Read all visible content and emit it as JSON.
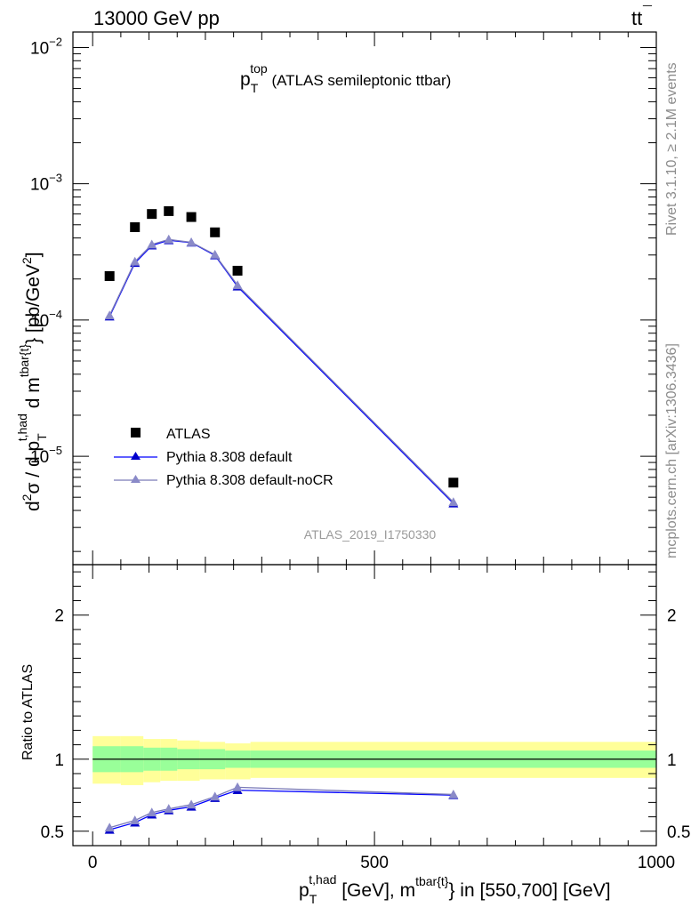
{
  "header": {
    "energy_label": "13000 GeV pp",
    "process_main": "tt",
    "process_bar": "¯"
  },
  "side_labels": {
    "rivet": "Rivet 3.1.10, ≥ 2.1M events",
    "mcplots": "mcplots.cern.ch [arXiv:1306.3436]"
  },
  "colors": {
    "data": "#000000",
    "default": "#0000ff",
    "default_marker": "#0000cc",
    "nocr": "#7a7ab8",
    "nocr_marker": "#8a8ac8",
    "band_inner": "#99ff99",
    "band_outer": "#ffff99"
  },
  "chart_data": [
    {
      "type": "scatter",
      "title": {
        "p": "p",
        "sub": "T",
        "sup": "top",
        "rest": " (ATLAS semileptonic ttbar)"
      },
      "ylabel": {
        "d2": "d",
        "d2_sup": "2",
        "sigma": "σ / d p",
        "p_sub": "T",
        "p_sup": "t,had",
        "dm": " d m",
        "m_sup": "tbar{t}",
        "unit": "} [pb/GeV",
        "unit_sup": "2",
        "close": "]"
      },
      "yscale": "log",
      "ylim": [
        1.6e-06,
        0.013
      ],
      "xlim": [
        -35,
        1000
      ],
      "y_ticks": [
        {
          "value": 0.01,
          "base": "10",
          "exp": "−2"
        },
        {
          "value": 0.001,
          "base": "10",
          "exp": "−3"
        },
        {
          "value": 0.0001,
          "base": "10",
          "exp": "−4"
        },
        {
          "value": 1e-05,
          "base": "10",
          "exp": "−5"
        }
      ],
      "watermark": "ATLAS_2019_I1750330",
      "legend_position": "lower-left",
      "legend": [
        {
          "key": "data",
          "label": "ATLAS"
        },
        {
          "key": "default",
          "label": "Pythia 8.308 default"
        },
        {
          "key": "nocr",
          "label": "Pythia 8.308 default-noCR"
        }
      ],
      "series": [
        {
          "key": "data",
          "name": "ATLAS",
          "x": [
            30,
            75,
            105,
            135,
            175,
            217,
            257,
            640
          ],
          "y": [
            0.00021,
            0.00048,
            0.0006,
            0.00063,
            0.00057,
            0.00044,
            0.00023,
            6.4e-06
          ]
        },
        {
          "key": "default",
          "name": "Pythia 8.308 default",
          "x": [
            30,
            75,
            105,
            135,
            175,
            217,
            257,
            640
          ],
          "y": [
            0.000106,
            0.000262,
            0.000352,
            0.000385,
            0.00037,
            0.000298,
            0.000176,
            4.5e-06
          ]
        },
        {
          "key": "nocr",
          "name": "Pythia 8.308 default-noCR",
          "x": [
            30,
            75,
            105,
            135,
            175,
            217,
            257,
            640
          ],
          "y": [
            0.000108,
            0.000268,
            0.000358,
            0.00039,
            0.000372,
            0.000302,
            0.00018,
            4.6e-06
          ]
        }
      ]
    },
    {
      "type": "line",
      "ylabel": "Ratio to ATLAS",
      "xlabel": {
        "p": "p",
        "p_sub": "T",
        "p_sup": "t,had",
        "mid": " [GeV], m",
        "m_sup": "tbar{t}",
        "rest": "} in [550,700] [GeV]"
      },
      "xlim": [
        -35,
        1000
      ],
      "ylim": [
        0.4,
        2.35
      ],
      "x_ticks": [
        {
          "value": 0,
          "label": "0"
        },
        {
          "value": 500,
          "label": "500"
        },
        {
          "value": 1000,
          "label": "1000"
        }
      ],
      "y_ticks": [
        {
          "value": 0.5,
          "label": "0.5"
        },
        {
          "value": 1,
          "label": "1"
        },
        {
          "value": 2,
          "label": "2"
        }
      ],
      "bands": {
        "edges": [
          0,
          50,
          90,
          120,
          150,
          190,
          235,
          280,
          1000
        ],
        "inner_low": [
          0.91,
          0.91,
          0.92,
          0.92,
          0.93,
          0.93,
          0.94,
          0.94
        ],
        "inner_high": [
          1.09,
          1.09,
          1.08,
          1.08,
          1.07,
          1.07,
          1.06,
          1.06
        ],
        "outer_low": [
          0.83,
          0.82,
          0.84,
          0.85,
          0.85,
          0.86,
          0.86,
          0.87
        ],
        "outer_high": [
          1.16,
          1.16,
          1.14,
          1.14,
          1.13,
          1.12,
          1.11,
          1.12
        ]
      },
      "reference_line": 1,
      "series": [
        {
          "key": "default",
          "name": "Pythia 8.308 default",
          "x": [
            30,
            75,
            105,
            135,
            175,
            217,
            257,
            640
          ],
          "y": [
            0.51,
            0.56,
            0.615,
            0.645,
            0.67,
            0.73,
            0.785,
            0.75
          ]
        },
        {
          "key": "nocr",
          "name": "Pythia 8.308 default-noCR",
          "x": [
            30,
            75,
            105,
            135,
            175,
            217,
            257,
            640
          ],
          "y": [
            0.525,
            0.575,
            0.63,
            0.655,
            0.685,
            0.74,
            0.805,
            0.755
          ]
        }
      ]
    }
  ]
}
